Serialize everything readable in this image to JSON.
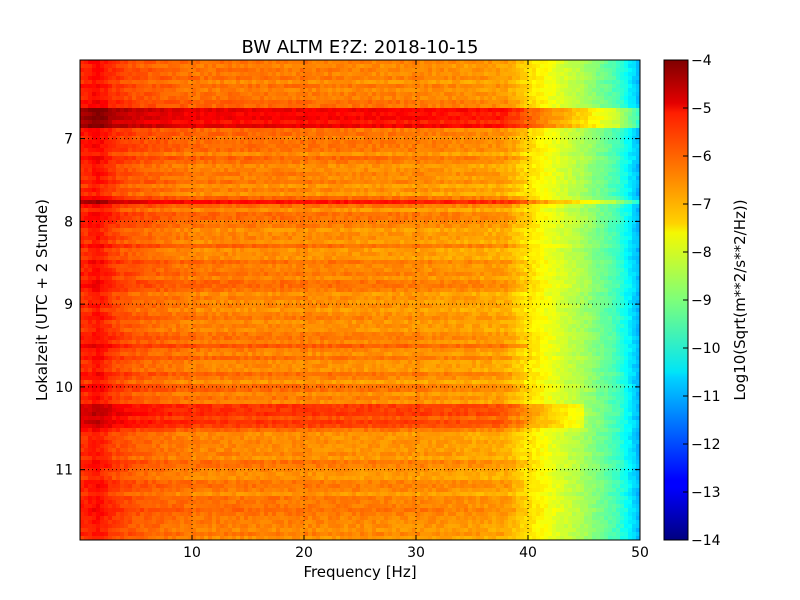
{
  "chart_data": {
    "type": "heatmap",
    "title": "BW ALTM E?Z: 2018-10-15",
    "xlabel": "Frequency [Hz]",
    "ylabel": "Lokalzeit (UTC + 2 Stunde)",
    "xlim": [
      0,
      50
    ],
    "ylim": [
      11.85,
      6.05
    ],
    "x_ticks": [
      10,
      20,
      30,
      40,
      50
    ],
    "y_ticks": [
      7,
      8,
      9,
      10,
      11
    ],
    "grid": true,
    "colormap": "jet",
    "colorbar": {
      "label": "Log10(Sqrt(m**2/s**2/Hz))",
      "range": [
        -14,
        -4
      ],
      "ticks": [
        -4,
        -5,
        -6,
        -7,
        -8,
        -9,
        -10,
        -11,
        -12,
        -13,
        -14
      ]
    },
    "spectrum_profile_log10": [
      {
        "freq": 0.5,
        "value": -5.6
      },
      {
        "freq": 1.5,
        "value": -5.3
      },
      {
        "freq": 3,
        "value": -5.8
      },
      {
        "freq": 5,
        "value": -6.1
      },
      {
        "freq": 10,
        "value": -6.4
      },
      {
        "freq": 20,
        "value": -6.5
      },
      {
        "freq": 30,
        "value": -6.6
      },
      {
        "freq": 38,
        "value": -6.8
      },
      {
        "freq": 40,
        "value": -7.4
      },
      {
        "freq": 42,
        "value": -7.9
      },
      {
        "freq": 45,
        "value": -8.6
      },
      {
        "freq": 48,
        "value": -9.6
      },
      {
        "freq": 50,
        "value": -11.0
      }
    ],
    "high_energy_bands": [
      {
        "start": 6.65,
        "end": 6.88,
        "fmax": 50,
        "boost": 1.2
      },
      {
        "start": 7.74,
        "end": 7.78,
        "fmax": 50,
        "boost": 0.9
      },
      {
        "start": 10.2,
        "end": 10.48,
        "fmax": 45,
        "boost": 0.6
      },
      {
        "start": 9.48,
        "end": 9.52,
        "fmax": 40,
        "boost": 0.4
      }
    ]
  }
}
